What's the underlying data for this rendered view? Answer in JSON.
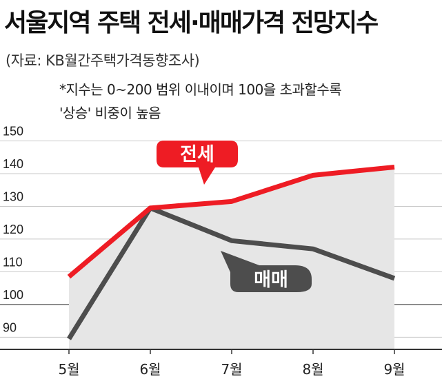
{
  "header": {
    "title": "서울지역 주택 전세·매매가격 전망지수",
    "source": "(자료: KB월간주택가격동향조사)",
    "note_line1": "*지수는 0~200 범위 이내이며 100을 초과할수록",
    "note_line2": "'상승' 비중이 높음"
  },
  "colors": {
    "jeonse": "#ee1c24",
    "maemae": "#4d4d4d",
    "area_fill": "#e6e6e6",
    "gridline": "#c8c8c8"
  },
  "chart_data": {
    "type": "line",
    "categories": [
      "5월",
      "6월",
      "7월",
      "8월",
      "9월"
    ],
    "series": [
      {
        "name": "전세",
        "values": [
          108.5,
          129.5,
          131.5,
          139.5,
          142.0
        ]
      },
      {
        "name": "매매",
        "values": [
          89.5,
          129.5,
          119.5,
          117.0,
          108.0
        ]
      }
    ],
    "y_ticks": [
      90,
      100,
      110,
      120,
      130,
      140,
      150
    ],
    "ylim": [
      86.5,
      156
    ],
    "grid": true,
    "legend": "labels placed on chart beside each line"
  }
}
